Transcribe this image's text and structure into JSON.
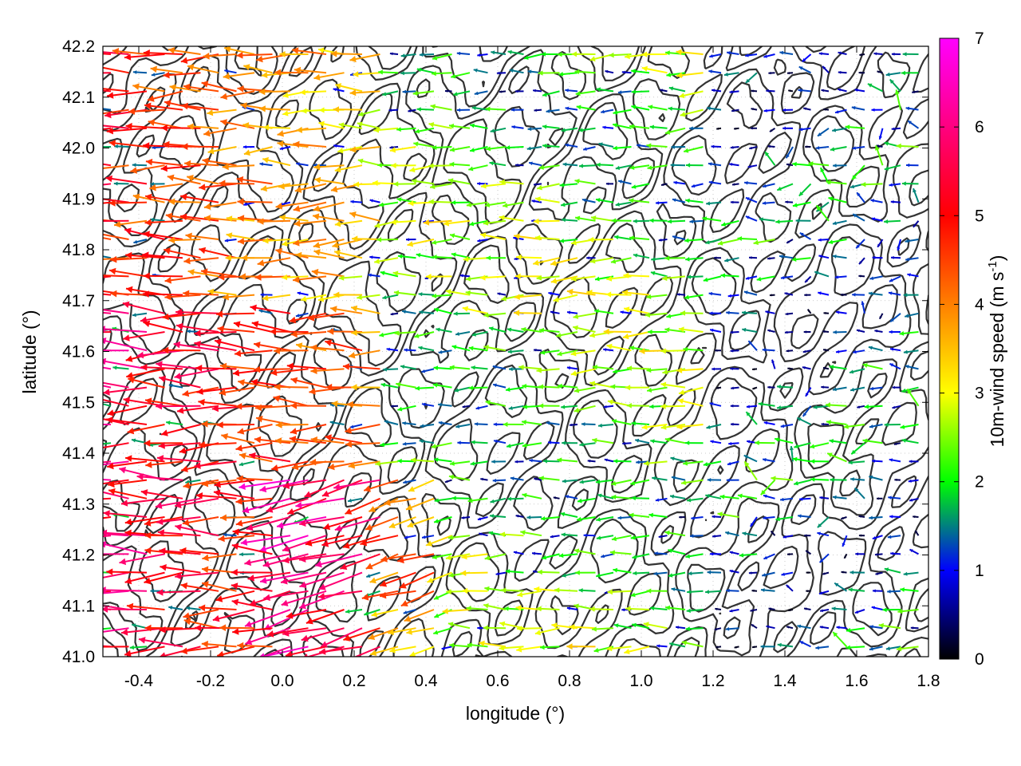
{
  "chart_data": {
    "type": "vector-field",
    "title": "",
    "xlabel": "longitude (°)",
    "ylabel": "latitude (°)",
    "xlim": [
      -0.5,
      1.8
    ],
    "ylim": [
      41.0,
      42.2
    ],
    "xticks": [
      "-0.4",
      "-0.2",
      "0.0",
      "0.2",
      "0.4",
      "0.6",
      "0.8",
      "1.0",
      "1.2",
      "1.4",
      "1.6",
      "1.8"
    ],
    "xtick_values": [
      -0.4,
      -0.2,
      0.0,
      0.2,
      0.4,
      0.6,
      0.8,
      1.0,
      1.2,
      1.4,
      1.6,
      1.8
    ],
    "yticks": [
      "41.0",
      "41.1",
      "41.2",
      "41.3",
      "41.4",
      "41.5",
      "41.6",
      "41.7",
      "41.8",
      "41.9",
      "42.0",
      "42.1",
      "42.2"
    ],
    "ytick_values": [
      41.0,
      41.1,
      41.2,
      41.3,
      41.4,
      41.5,
      41.6,
      41.7,
      41.8,
      41.9,
      42.0,
      42.1,
      42.2
    ],
    "grid": true,
    "colorbar": {
      "label": "10m-wind speed (m s-1)",
      "label_main": "10m-wind speed (m s",
      "label_sup": "-1",
      "label_end": ")",
      "min": 0,
      "max": 7,
      "ticks": [
        "0",
        "1",
        "2",
        "3",
        "4",
        "5",
        "6",
        "7"
      ],
      "tick_values": [
        0,
        1,
        2,
        3,
        4,
        5,
        6,
        7
      ],
      "colormap": [
        "#000000",
        "#0000ff",
        "#00ff00",
        "#ffff00",
        "#ff8000",
        "#ff0000",
        "#ff00ff"
      ]
    },
    "wind_field": {
      "direction": "predominantly westward (from east)",
      "regions": [
        {
          "area": "west, lon -0.5 to 0.3",
          "speed_range": [
            3,
            7
          ],
          "direction_deg": 180
        },
        {
          "area": "central, lon 0.4 to 1.1",
          "speed_range": [
            1.5,
            3
          ],
          "direction_deg": 180
        },
        {
          "area": "east, lon 1.3 to 1.8",
          "speed_range": [
            0,
            2
          ],
          "direction_deg": 180
        },
        {
          "area": "southwest valley, lat 41.05 to 41.35",
          "speed_range": [
            4,
            7
          ],
          "direction_deg": 165
        }
      ]
    },
    "contours": {
      "description": "terrain elevation contours",
      "color": "#333333"
    }
  }
}
